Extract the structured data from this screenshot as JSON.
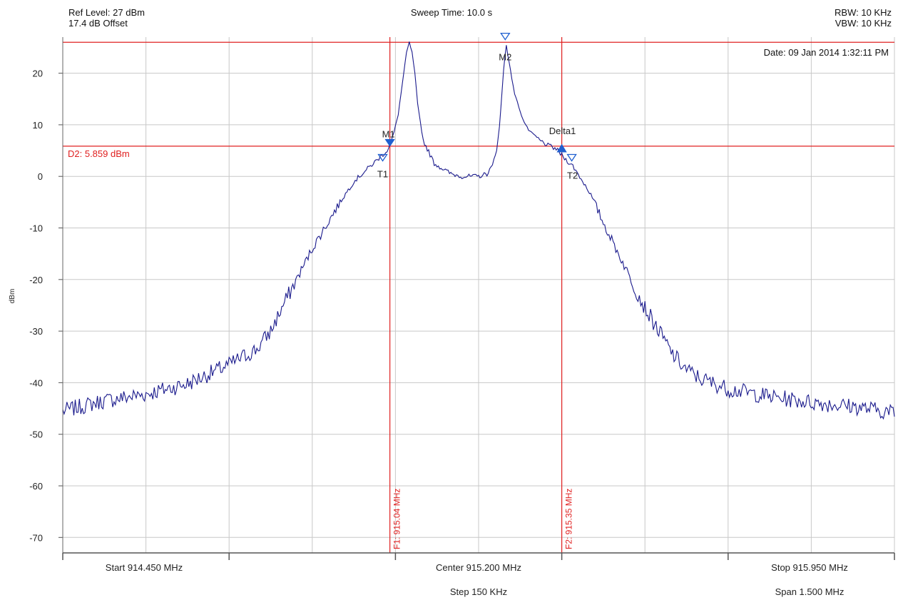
{
  "header": {
    "ref_level": "Ref Level: 27 dBm",
    "offset": "17.4 dB Offset",
    "sweep_time": "Sweep Time: 10.0 s",
    "rbw": "RBW: 10 KHz",
    "vbw": "VBW: 10 KHz"
  },
  "date": "Date: 09 Jan 2014 1:32:11 PM",
  "colors": {
    "trace": "#1a1a8c",
    "marker_line": "#e02020",
    "marker_symbol": "#2060d0",
    "grid": "#c8c8c8"
  },
  "chart_data": {
    "type": "line",
    "ylabel": "dBm",
    "ylim": [
      -73,
      27
    ],
    "xlim_mhz": [
      914.45,
      915.95
    ],
    "y_ticks": [
      "20",
      "10",
      "0",
      "-10",
      "-20",
      "-30",
      "-40",
      "-50",
      "-60",
      "-70"
    ],
    "y_tick_values": [
      20,
      10,
      0,
      -10,
      -20,
      -30,
      -40,
      -50,
      -60,
      -70
    ],
    "x_labels": {
      "start": "Start 914.450 MHz",
      "center": "Center 915.200 MHz",
      "stop": "Stop 915.950 MHz",
      "step": "Step 150 KHz",
      "span": "Span 1.500 MHz"
    },
    "grid": true,
    "reference_line": {
      "label": "D2: 5.859 dBm",
      "value": 5.859
    },
    "top_line_value": 26,
    "vertical_markers": [
      {
        "label": "F1: 915.04 MHz",
        "freq": 915.04
      },
      {
        "label": "F2: 915.35 MHz",
        "freq": 915.35
      }
    ],
    "point_markers": [
      {
        "label": "M1",
        "freq": 915.04,
        "value": 5.9,
        "symbol": "filled-down"
      },
      {
        "label": "T1",
        "freq": 915.027,
        "value": 3.0,
        "symbol": "hollow-down"
      },
      {
        "label": "M2",
        "freq": 915.248,
        "value": 26.5,
        "symbol": "hollow-down"
      },
      {
        "label": "Delta1",
        "freq": 915.35,
        "value": 5.3,
        "symbol": "filled-up"
      },
      {
        "label": "T2",
        "freq": 915.368,
        "value": 3.0,
        "symbol": "hollow-down"
      }
    ],
    "series": [
      {
        "freq_mhz": [
          914.45,
          914.525,
          914.6,
          914.675,
          914.75,
          914.8,
          914.825,
          914.85,
          914.9,
          914.95,
          914.975,
          915.0,
          915.02,
          915.035,
          915.045,
          915.055,
          915.06,
          915.065,
          915.07,
          915.075,
          915.08,
          915.085,
          915.09,
          915.1,
          915.12,
          915.15,
          915.17,
          915.2,
          915.215,
          915.225,
          915.232,
          915.238,
          915.242,
          915.246,
          915.25,
          915.255,
          915.265,
          915.28,
          915.29,
          915.3,
          915.31,
          915.325,
          915.34,
          915.355,
          915.37,
          915.4,
          915.425,
          915.475,
          915.5,
          915.55,
          915.575,
          915.6,
          915.65,
          915.725,
          915.8,
          915.875,
          915.95
        ],
        "dbm": [
          -45.5,
          -43.5,
          -42.2,
          -40.2,
          -36.5,
          -33.5,
          -30,
          -24.5,
          -14,
          -5,
          -1,
          1.5,
          3.5,
          5,
          7.5,
          12,
          16,
          20,
          24,
          26,
          24,
          20,
          14,
          7,
          2.5,
          0.5,
          0,
          0,
          0.5,
          2,
          5,
          10,
          16,
          22,
          25.5,
          22,
          16,
          11,
          9,
          8,
          7,
          6,
          5.3,
          3.5,
          2,
          -3,
          -9,
          -20,
          -25.5,
          -34.5,
          -37.5,
          -39.2,
          -41.2,
          -42.7,
          -43.8,
          -44.6,
          -45.8
        ]
      }
    ]
  }
}
